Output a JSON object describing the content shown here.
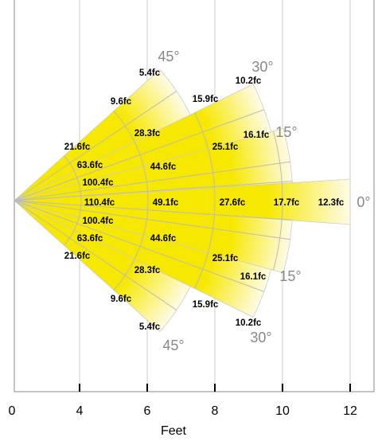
{
  "diagram": {
    "x_axis": {
      "label": "Feet",
      "ticks": [
        "0",
        "4",
        "6",
        "8",
        "10",
        "12"
      ]
    },
    "angles": [
      "45°",
      "30°",
      "15°",
      "0°",
      "15°",
      "30°",
      "45°"
    ],
    "fc_labels": [
      "5.4fc",
      "9.6fc",
      "15.9fc",
      "10.2fc",
      "28.3fc",
      "16.1fc",
      "21.6fc",
      "25.1fc",
      "63.6fc",
      "44.6fc",
      "100.4fc",
      "110.4fc",
      "49.1fc",
      "27.6fc",
      "17.7fc",
      "12.3fc",
      "100.4fc",
      "63.6fc",
      "21.6fc",
      "44.6fc",
      "25.1fc",
      "28.3fc",
      "16.1fc",
      "9.6fc",
      "15.9fc",
      "5.4fc",
      "10.2fc"
    ]
  }
}
